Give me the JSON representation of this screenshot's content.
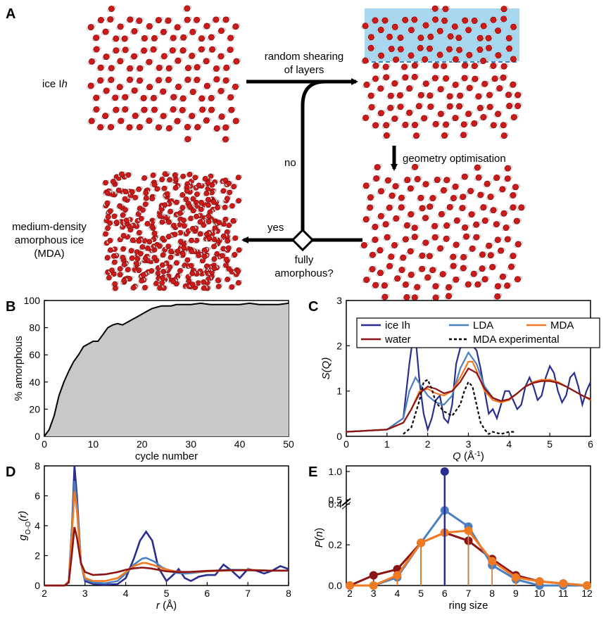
{
  "panels": {
    "a": "A",
    "b": "B",
    "c": "C",
    "d": "D",
    "e": "E"
  },
  "flow": {
    "ice_label_main": "ice I",
    "ice_label_italic": "h",
    "arrow_top": [
      "random shearing",
      "of layers"
    ],
    "geom_opt": "geometry optimisation",
    "no": "no",
    "yes": "yes",
    "question": [
      "fully",
      "amorphous?"
    ],
    "mda_label": [
      "medium-density",
      "amorphous ice",
      "(MDA)"
    ]
  },
  "colors": {
    "ice": "#2a2f8f",
    "lda": "#4a7fc0",
    "mda": "#f07a22",
    "water": "#8b1414",
    "exp": "#000000",
    "fill": "#c8c8c8",
    "shear_box": "#a8d8f0"
  },
  "chart_data": [
    {
      "panel": "B",
      "type": "area",
      "xlabel": "cycle number",
      "ylabel": "% amorphous",
      "xlim": [
        0,
        50
      ],
      "ylim": [
        0,
        100
      ],
      "xticks": [
        0,
        10,
        20,
        30,
        40,
        50
      ],
      "yticks": [
        0,
        20,
        40,
        60,
        80,
        100
      ],
      "x": [
        0,
        1,
        2,
        3,
        4,
        5,
        6,
        7,
        8,
        9,
        10,
        11,
        12,
        13,
        14,
        15,
        16,
        17,
        18,
        19,
        20,
        21,
        22,
        23,
        24,
        25,
        26,
        27,
        28,
        29,
        30,
        32,
        34,
        36,
        38,
        40,
        42,
        44,
        46,
        48,
        50
      ],
      "values": [
        0,
        5,
        15,
        30,
        40,
        48,
        55,
        60,
        66,
        68,
        70,
        70,
        75,
        80,
        82,
        83,
        82,
        84,
        86,
        88,
        90,
        92,
        94,
        95,
        96,
        96,
        96,
        97,
        97,
        97,
        97,
        98,
        97,
        97,
        97,
        97,
        98,
        97,
        97,
        97,
        98
      ]
    },
    {
      "panel": "C",
      "type": "line",
      "xlabel_main": "Q",
      "xlabel_unit": " (Å",
      "xlabel_exp": "-1",
      "xlabel_close": ")",
      "ylabel": "S(Q)",
      "xlim": [
        0,
        6
      ],
      "ylim": [
        0,
        3
      ],
      "xticks": [
        0,
        1,
        2,
        3,
        4,
        5,
        6
      ],
      "yticks": [
        0,
        1,
        2,
        3
      ],
      "legend": [
        "ice Ih",
        "LDA",
        "MDA",
        "water",
        "MDA experimental"
      ],
      "legend_position": "top",
      "series": [
        {
          "name": "ice Ih",
          "x": [
            0,
            1.0,
            1.4,
            1.55,
            1.65,
            1.72,
            1.8,
            1.9,
            2.0,
            2.1,
            2.2,
            2.3,
            2.4,
            2.5,
            2.6,
            2.7,
            2.8,
            2.9,
            3.0,
            3.1,
            3.2,
            3.3,
            3.4,
            3.5,
            3.6,
            3.7,
            3.8,
            3.9,
            4.0,
            4.1,
            4.2,
            4.3,
            4.4,
            4.5,
            4.6,
            4.7,
            4.8,
            4.9,
            5.0,
            5.1,
            5.2,
            5.3,
            5.4,
            5.5,
            5.6,
            5.7,
            5.8,
            5.9,
            6.0
          ],
          "values": [
            0.1,
            0.15,
            0.4,
            1.6,
            2.25,
            2.0,
            1.2,
            0.5,
            0.15,
            0.4,
            0.8,
            0.9,
            0.4,
            0.3,
            0.7,
            1.6,
            1.95,
            2.0,
            2.0,
            2.0,
            1.9,
            1.5,
            1.0,
            0.5,
            0.6,
            0.4,
            0.7,
            1.0,
            1.0,
            0.8,
            0.6,
            0.7,
            1.1,
            1.3,
            1.1,
            0.8,
            0.9,
            1.3,
            1.55,
            1.4,
            1.0,
            0.75,
            0.9,
            1.3,
            1.4,
            1.1,
            0.7,
            1.0,
            1.2
          ]
        },
        {
          "name": "LDA",
          "x": [
            0,
            1.0,
            1.4,
            1.55,
            1.7,
            1.85,
            2.0,
            2.2,
            2.4,
            2.6,
            2.8,
            3.0,
            3.2,
            3.4,
            3.6,
            3.8,
            4.0,
            4.2,
            4.4,
            4.6,
            4.8,
            5.0,
            5.2,
            5.4,
            5.6,
            5.8,
            6.0
          ],
          "values": [
            0.1,
            0.15,
            0.4,
            1.0,
            1.3,
            1.1,
            0.9,
            0.75,
            0.7,
            0.9,
            1.5,
            1.85,
            1.6,
            1.1,
            0.85,
            0.75,
            0.8,
            0.95,
            1.1,
            1.2,
            1.25,
            1.25,
            1.2,
            1.1,
            1.0,
            0.9,
            0.8
          ]
        },
        {
          "name": "MDA",
          "x": [
            0,
            1.0,
            1.4,
            1.6,
            1.8,
            2.0,
            2.2,
            2.4,
            2.6,
            2.8,
            3.0,
            3.1,
            3.2,
            3.4,
            3.6,
            3.8,
            4.0,
            4.2,
            4.4,
            4.6,
            4.8,
            5.0,
            5.2,
            5.4,
            5.6,
            5.8,
            6.0
          ],
          "values": [
            0.1,
            0.15,
            0.3,
            0.6,
            1.0,
            1.05,
            0.95,
            0.9,
            1.0,
            1.3,
            1.65,
            1.65,
            1.45,
            1.0,
            0.8,
            0.75,
            0.8,
            0.95,
            1.1,
            1.2,
            1.25,
            1.25,
            1.2,
            1.1,
            1.0,
            0.9,
            0.8
          ]
        },
        {
          "name": "water",
          "x": [
            0,
            1.0,
            1.4,
            1.6,
            1.8,
            2.0,
            2.2,
            2.4,
            2.6,
            2.8,
            3.0,
            3.2,
            3.4,
            3.6,
            3.8,
            4.0,
            4.2,
            4.4,
            4.6,
            4.8,
            5.0,
            5.2,
            5.4,
            5.6,
            5.8,
            6.0
          ],
          "values": [
            0.1,
            0.15,
            0.3,
            0.6,
            0.95,
            1.1,
            1.05,
            0.95,
            1.0,
            1.2,
            1.5,
            1.4,
            1.05,
            0.85,
            0.78,
            0.82,
            0.95,
            1.1,
            1.18,
            1.22,
            1.22,
            1.18,
            1.1,
            1.0,
            0.9,
            0.82
          ]
        },
        {
          "name": "MDA experimental",
          "x": [
            1.4,
            1.6,
            1.8,
            1.9,
            2.0,
            2.1,
            2.2,
            2.4,
            2.6,
            2.8,
            2.9,
            3.0,
            3.1,
            3.2,
            3.3,
            3.4,
            3.5,
            3.6,
            3.8,
            4.0,
            4.15
          ],
          "values": [
            0.05,
            0.2,
            0.8,
            1.2,
            1.25,
            1.05,
            0.75,
            0.55,
            0.45,
            0.7,
            1.0,
            1.2,
            1.1,
            0.7,
            0.3,
            0.15,
            0.05,
            0.1,
            0.05,
            0.1,
            0.1
          ]
        }
      ]
    },
    {
      "panel": "D",
      "type": "line",
      "xlabel_main": "r",
      "xlabel_unit": " (Å)",
      "ylabel_main": "g",
      "ylabel_sub": "O-O",
      "ylabel_arg": "(r)",
      "xlim": [
        2,
        8
      ],
      "ylim": [
        0,
        8
      ],
      "xticks": [
        2,
        3,
        4,
        5,
        6,
        7,
        8
      ],
      "yticks": [
        0,
        2,
        4,
        6,
        8
      ],
      "series": [
        {
          "name": "ice Ih",
          "x": [
            2.0,
            2.5,
            2.6,
            2.68,
            2.74,
            2.8,
            2.9,
            3.0,
            3.2,
            3.5,
            3.8,
            4.0,
            4.2,
            4.35,
            4.5,
            4.65,
            4.8,
            5.0,
            5.2,
            5.3,
            5.45,
            5.6,
            5.8,
            6.0,
            6.2,
            6.4,
            6.6,
            6.8,
            7.0,
            7.2,
            7.4,
            7.6,
            7.8,
            8.0
          ],
          "values": [
            0,
            0,
            0.3,
            4.0,
            8.0,
            6.0,
            1.5,
            0.3,
            0.1,
            0.05,
            0.1,
            0.5,
            1.8,
            3.0,
            3.6,
            3.0,
            1.2,
            0.3,
            0.8,
            1.1,
            0.5,
            0.3,
            0.6,
            0.7,
            0.7,
            1.4,
            1.0,
            0.5,
            1.1,
            1.0,
            0.8,
            1.0,
            1.3,
            1.1
          ]
        },
        {
          "name": "LDA",
          "x": [
            2.0,
            2.5,
            2.6,
            2.68,
            2.74,
            2.8,
            2.9,
            3.0,
            3.2,
            3.5,
            3.8,
            4.0,
            4.2,
            4.4,
            4.5,
            4.7,
            4.9,
            5.2,
            5.5,
            6.0,
            6.5,
            7.0,
            7.5,
            8.0
          ],
          "values": [
            0,
            0,
            0.3,
            4.0,
            7.0,
            5.5,
            1.5,
            0.4,
            0.2,
            0.15,
            0.3,
            0.8,
            1.4,
            1.8,
            1.85,
            1.6,
            1.2,
            0.85,
            0.8,
            0.95,
            1.05,
            1.05,
            1.0,
            1.0
          ]
        },
        {
          "name": "MDA",
          "x": [
            2.0,
            2.5,
            2.6,
            2.68,
            2.74,
            2.8,
            2.9,
            3.0,
            3.2,
            3.5,
            3.8,
            4.0,
            4.2,
            4.4,
            4.5,
            4.7,
            4.9,
            5.2,
            5.5,
            6.0,
            6.5,
            7.0,
            7.5,
            8.0
          ],
          "values": [
            0,
            0,
            0.3,
            3.5,
            6.3,
            5.0,
            1.5,
            0.5,
            0.3,
            0.3,
            0.5,
            0.9,
            1.3,
            1.5,
            1.5,
            1.35,
            1.15,
            0.95,
            0.9,
            0.95,
            1.0,
            1.05,
            1.0,
            1.0
          ]
        },
        {
          "name": "water",
          "x": [
            2.0,
            2.5,
            2.6,
            2.68,
            2.74,
            2.8,
            2.9,
            3.0,
            3.2,
            3.5,
            3.8,
            4.0,
            4.2,
            4.4,
            4.6,
            4.8,
            5.0,
            5.3,
            5.6,
            6.0,
            6.5,
            7.0,
            7.5,
            8.0
          ],
          "values": [
            0,
            0,
            0.2,
            2.2,
            3.9,
            3.2,
            1.5,
            0.9,
            0.7,
            0.75,
            0.9,
            1.05,
            1.15,
            1.2,
            1.15,
            1.05,
            0.95,
            0.9,
            0.92,
            0.98,
            1.02,
            1.02,
            1.0,
            1.0
          ]
        }
      ]
    },
    {
      "panel": "E",
      "type": "line",
      "xlabel": "ring size",
      "ylabel_main": "P(",
      "ylabel_italic": "n",
      "ylabel_close": ")",
      "xlim": [
        2,
        12
      ],
      "ylim": [
        0,
        1.0
      ],
      "axis_break": [
        0.4,
        0.5
      ],
      "xticks": [
        2,
        3,
        4,
        5,
        6,
        7,
        8,
        9,
        10,
        11,
        12
      ],
      "yticks_lower": [
        0.0,
        0.2,
        0.4
      ],
      "yticks_upper": [
        0.5,
        1.0
      ],
      "series": [
        {
          "name": "ice Ih",
          "x": [
            6
          ],
          "values": [
            1.0
          ]
        },
        {
          "name": "LDA",
          "x": [
            2,
            3,
            4,
            5,
            6,
            7,
            8,
            9,
            10,
            11,
            12
          ],
          "values": [
            0.0,
            0.0,
            0.04,
            0.21,
            0.37,
            0.29,
            0.1,
            0.03,
            0.0,
            0.0,
            0.0
          ]
        },
        {
          "name": "water",
          "x": [
            2,
            3,
            4,
            5,
            6,
            7,
            8,
            9,
            10,
            11,
            12
          ],
          "values": [
            0.0,
            0.05,
            0.08,
            0.21,
            0.26,
            0.22,
            0.13,
            0.05,
            0.02,
            0.01,
            0.0
          ]
        },
        {
          "name": "MDA",
          "x": [
            2,
            3,
            4,
            5,
            6,
            7,
            8,
            9,
            10,
            11,
            12
          ],
          "values": [
            0.0,
            0.0,
            0.05,
            0.21,
            0.26,
            0.27,
            0.12,
            0.04,
            0.02,
            0.01,
            0.0
          ]
        }
      ]
    }
  ]
}
